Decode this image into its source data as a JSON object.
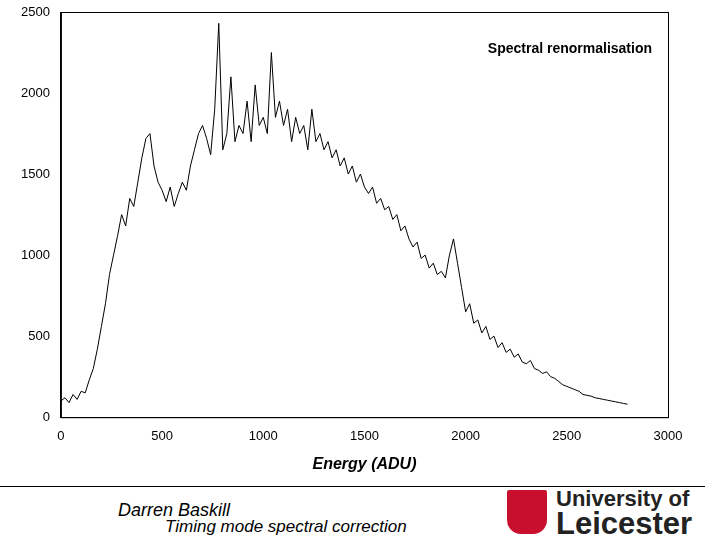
{
  "chart_data": {
    "type": "line",
    "title": "Spectral renormalisation",
    "x_label": "Energy (ADU)",
    "x": [
      0,
      20,
      40,
      60,
      80,
      100,
      120,
      140,
      160,
      180,
      200,
      220,
      240,
      260,
      280,
      300,
      320,
      340,
      360,
      380,
      400,
      420,
      440,
      460,
      480,
      500,
      520,
      540,
      560,
      580,
      600,
      620,
      640,
      660,
      680,
      700,
      720,
      740,
      760,
      780,
      800,
      820,
      840,
      860,
      880,
      900,
      920,
      940,
      960,
      980,
      1000,
      1020,
      1040,
      1060,
      1080,
      1100,
      1120,
      1140,
      1160,
      1180,
      1200,
      1220,
      1240,
      1260,
      1280,
      1300,
      1320,
      1340,
      1360,
      1380,
      1400,
      1420,
      1440,
      1460,
      1480,
      1500,
      1520,
      1540,
      1560,
      1580,
      1600,
      1620,
      1640,
      1660,
      1680,
      1700,
      1720,
      1740,
      1760,
      1780,
      1800,
      1820,
      1840,
      1860,
      1880,
      1900,
      1920,
      1940,
      1960,
      1980,
      2000,
      2020,
      2040,
      2060,
      2080,
      2100,
      2120,
      2140,
      2160,
      2180,
      2200,
      2220,
      2240,
      2260,
      2280,
      2300,
      2320,
      2340,
      2360,
      2380,
      2400,
      2420,
      2440,
      2460,
      2480,
      2500,
      2520,
      2540,
      2560,
      2580,
      2600,
      2620,
      2640,
      2660,
      2680,
      2700,
      2720,
      2740,
      2760,
      2780,
      2800
    ],
    "values": [
      100,
      120,
      90,
      140,
      110,
      160,
      150,
      230,
      300,
      420,
      560,
      700,
      880,
      1000,
      1120,
      1250,
      1180,
      1350,
      1300,
      1450,
      1600,
      1720,
      1750,
      1550,
      1450,
      1400,
      1330,
      1420,
      1300,
      1380,
      1450,
      1400,
      1550,
      1650,
      1750,
      1800,
      1720,
      1620,
      1900,
      2430,
      1650,
      1750,
      2100,
      1700,
      1800,
      1750,
      1950,
      1700,
      2050,
      1800,
      1850,
      1750,
      2250,
      1850,
      1950,
      1800,
      1900,
      1700,
      1850,
      1750,
      1800,
      1650,
      1900,
      1700,
      1750,
      1650,
      1700,
      1600,
      1650,
      1550,
      1600,
      1500,
      1550,
      1450,
      1500,
      1420,
      1380,
      1420,
      1320,
      1350,
      1280,
      1300,
      1220,
      1250,
      1150,
      1180,
      1100,
      1050,
      1080,
      980,
      1000,
      920,
      950,
      880,
      900,
      860,
      1000,
      1100,
      950,
      800,
      650,
      700,
      580,
      600,
      520,
      560,
      480,
      500,
      430,
      460,
      400,
      420,
      370,
      390,
      340,
      330,
      350,
      300,
      290,
      270,
      280,
      250,
      240,
      220,
      200,
      190,
      180,
      170,
      160,
      140,
      135,
      130,
      120,
      115,
      110,
      105,
      100,
      95,
      90,
      85,
      80
    ],
    "color": "#000000",
    "xlim": [
      0,
      3000
    ],
    "xticks": [
      0,
      500,
      1000,
      1500,
      2000,
      2500,
      3000
    ],
    "ylim": [
      0,
      2500
    ],
    "yticks": [
      0,
      500,
      1000,
      1500,
      2000,
      2500
    ],
    "grid": false
  },
  "footer": {
    "author": "Darren Baskill",
    "talk_title": "Timing mode spectral correction",
    "institution": [
      "University of",
      "Leicester"
    ]
  }
}
